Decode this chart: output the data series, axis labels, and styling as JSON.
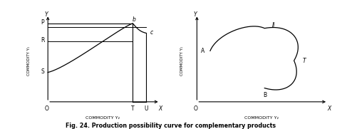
{
  "bg_color": "#ffffff",
  "fig_width": 4.8,
  "fig_height": 1.81,
  "caption": "Fig. 24. Production possibility curve for complementary products",
  "left": {
    "xlabel": "COMMODITY Y₂",
    "ylabel": "COMMODITY Y₁"
  },
  "right": {
    "xlabel": "COMMODITY Y₂",
    "ylabel": "COMMODITY Y₁"
  }
}
